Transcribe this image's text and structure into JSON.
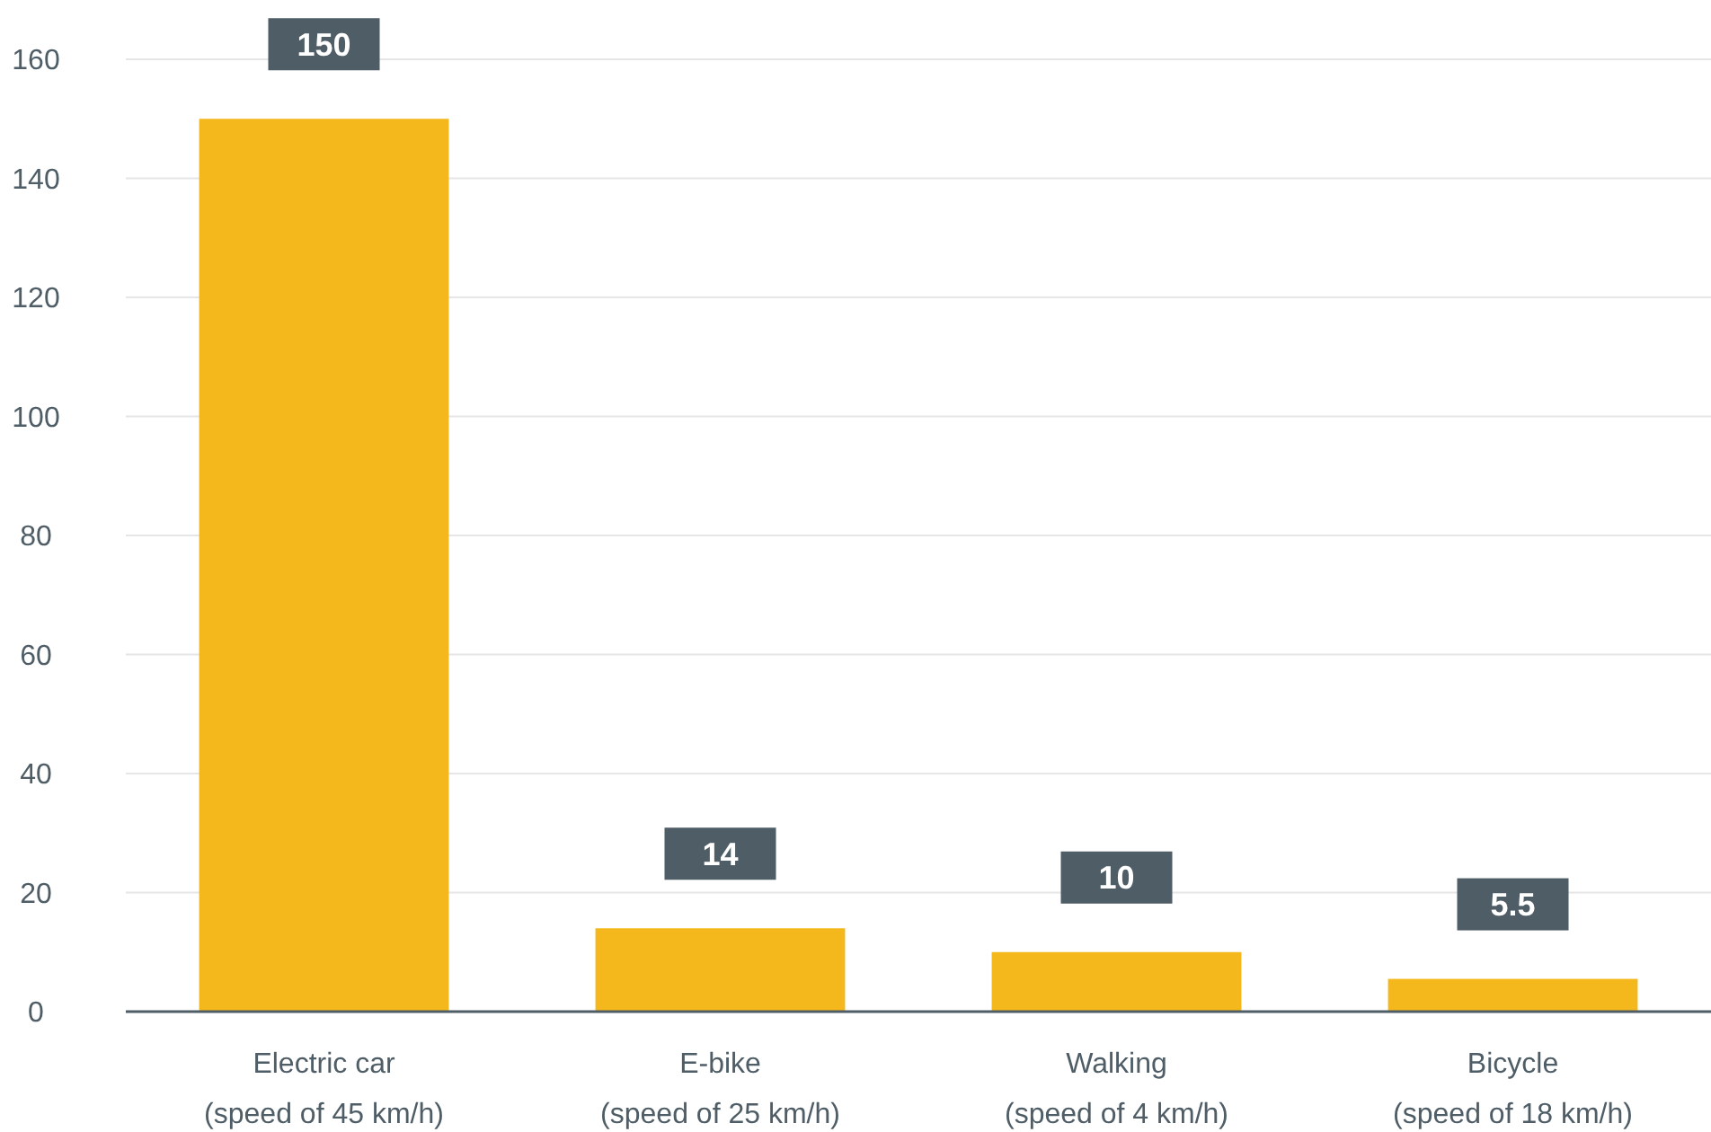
{
  "chart_data": {
    "type": "bar",
    "categories": [
      "Electric car\n(speed of 45 km/h)",
      "E-bike\n(speed of 25 km/h)",
      "Walking\n(speed of 4 km/h)",
      "Bicycle\n(speed of 18 km/h)"
    ],
    "values": [
      150,
      14,
      10,
      5.5
    ],
    "color": "#f5b81c",
    "ylim": [
      0,
      160
    ],
    "yticks": [
      0,
      20,
      40,
      60,
      80,
      100,
      120,
      140,
      160
    ],
    "grid": "y",
    "data_labels": true
  }
}
